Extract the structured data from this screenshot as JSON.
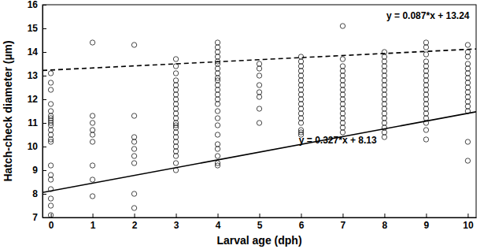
{
  "chart_data": {
    "type": "scatter",
    "x_label": "Larval age (dph)",
    "y_label": "Hatch-check diameter (µm)",
    "xlim": [
      -0.2,
      10.2
    ],
    "ylim": [
      7,
      16
    ],
    "xticks": [
      0,
      1,
      2,
      3,
      4,
      5,
      6,
      7,
      8,
      9,
      10
    ],
    "yticks": [
      7,
      8,
      9,
      10,
      11,
      12,
      13,
      14,
      15,
      16
    ],
    "grid": false,
    "series": [
      {
        "type": "scatter",
        "marker": "circle",
        "color": "#1a1a1a",
        "x": [
          0,
          0,
          0,
          0,
          0,
          0,
          0,
          0,
          0,
          0,
          0,
          0,
          0,
          0,
          0,
          0,
          0,
          0,
          0,
          0,
          0,
          1,
          1,
          1,
          1,
          1,
          1,
          1,
          1,
          1,
          2,
          2,
          2,
          2,
          2,
          2,
          2,
          2,
          2,
          3,
          3,
          3,
          3,
          3,
          3,
          3,
          3,
          3,
          3,
          3,
          3,
          3,
          3,
          3,
          3,
          3,
          3,
          3,
          3,
          3,
          3,
          3,
          4,
          4,
          4,
          4,
          4,
          4,
          4,
          4,
          4,
          4,
          4,
          4,
          4,
          4,
          4,
          4,
          4,
          4,
          4,
          4,
          4,
          4,
          4,
          4,
          5,
          5,
          5,
          5,
          5,
          5,
          5,
          5,
          6,
          6,
          6,
          6,
          6,
          6,
          6,
          6,
          6,
          6,
          6,
          6,
          6,
          6,
          6,
          6,
          6,
          6,
          7,
          7,
          7,
          7,
          7,
          7,
          7,
          7,
          7,
          7,
          7,
          7,
          7,
          7,
          7,
          7,
          7,
          8,
          8,
          8,
          8,
          8,
          8,
          8,
          8,
          8,
          8,
          8,
          8,
          8,
          8,
          8,
          8,
          8,
          8,
          8,
          9,
          9,
          9,
          9,
          9,
          9,
          9,
          9,
          9,
          9,
          9,
          9,
          9,
          9,
          9,
          9,
          9,
          9,
          9,
          10,
          10,
          10,
          10,
          10,
          10,
          10,
          10,
          10,
          10,
          10,
          10,
          10,
          10,
          10,
          10
        ],
        "values": [
          13.1,
          12.7,
          12.4,
          11.8,
          11.5,
          11.3,
          11.2,
          11.1,
          11.0,
          10.9,
          10.7,
          10.5,
          10.3,
          10.2,
          9.2,
          8.8,
          8.6,
          8.2,
          7.8,
          7.5,
          7.1,
          14.4,
          11.3,
          11.0,
          10.7,
          10.5,
          10.2,
          9.2,
          8.6,
          7.9,
          14.3,
          11.3,
          10.4,
          10.2,
          9.9,
          9.6,
          9.3,
          8.0,
          7.4,
          13.7,
          13.4,
          13.1,
          12.8,
          12.6,
          12.4,
          12.2,
          12.0,
          11.8,
          11.6,
          11.4,
          11.2,
          11.0,
          10.9,
          10.8,
          10.6,
          10.4,
          10.2,
          10.0,
          9.8,
          9.6,
          9.3,
          9.0,
          14.4,
          14.2,
          14.0,
          13.8,
          13.6,
          13.5,
          13.3,
          13.1,
          12.9,
          12.8,
          12.6,
          12.4,
          12.2,
          12.0,
          11.8,
          11.5,
          11.2,
          10.9,
          10.5,
          10.1,
          9.9,
          9.6,
          9.3,
          9.2,
          13.5,
          13.3,
          13.0,
          12.6,
          12.3,
          12.1,
          11.6,
          11.0,
          13.8,
          13.6,
          13.4,
          13.2,
          13.0,
          12.8,
          12.6,
          12.4,
          12.2,
          12.0,
          11.8,
          11.6,
          11.4,
          11.2,
          11.0,
          10.7,
          10.6,
          10.5,
          15.1,
          13.7,
          13.4,
          13.2,
          13.0,
          12.8,
          12.6,
          12.4,
          12.2,
          12.0,
          11.8,
          11.6,
          11.4,
          11.2,
          11.0,
          10.8,
          10.6,
          14.0,
          13.8,
          13.6,
          13.4,
          13.2,
          13.0,
          12.8,
          12.6,
          12.4,
          12.2,
          12.0,
          11.8,
          11.6,
          11.4,
          11.2,
          11.0,
          10.8,
          10.6,
          10.4,
          14.4,
          14.2,
          13.9,
          13.6,
          13.4,
          13.2,
          13.0,
          12.8,
          12.6,
          12.4,
          12.2,
          12.0,
          11.8,
          11.6,
          11.4,
          11.2,
          11.0,
          10.7,
          10.3,
          14.3,
          14.0,
          13.8,
          13.5,
          13.3,
          13.1,
          12.9,
          12.7,
          12.5,
          12.3,
          12.1,
          11.9,
          11.7,
          11.5,
          10.2,
          9.4
        ]
      },
      {
        "type": "line",
        "line_style": "dashed",
        "color": "#000000",
        "x": [
          -0.2,
          10.2
        ],
        "values": [
          13.22,
          14.13
        ]
      },
      {
        "type": "line",
        "line_style": "solid",
        "color": "#000000",
        "x": [
          -0.2,
          10.2
        ],
        "values": [
          8.06,
          11.47
        ]
      }
    ],
    "annotations": [
      {
        "text": "y = 0.087*x + 13.24",
        "x": 8.05,
        "y": 15.4
      },
      {
        "text": "y = 0.327*x + 8.13",
        "x": 5.95,
        "y": 10.15
      }
    ]
  }
}
